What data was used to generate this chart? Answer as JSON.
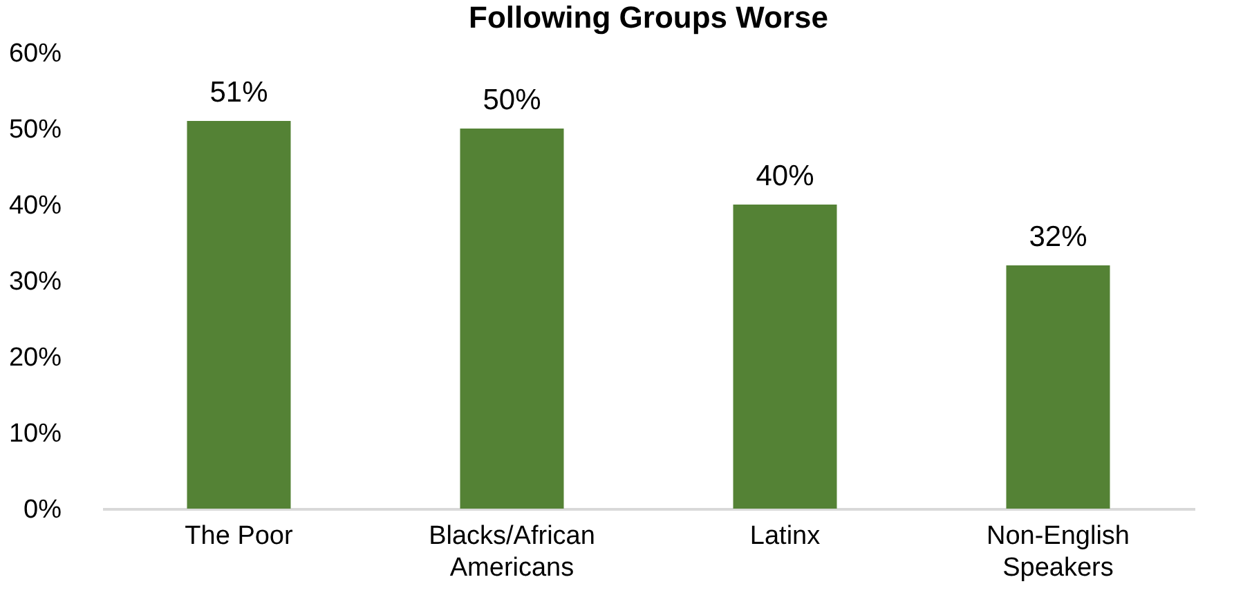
{
  "chart_data": {
    "type": "bar",
    "title": "Following Groups Worse",
    "categories": [
      "The Poor",
      "Blacks/African\nAmericans",
      "Latinx",
      "Non-English\nSpeakers"
    ],
    "values": [
      51,
      50,
      40,
      32
    ],
    "color": "#548235",
    "ylim": [
      0,
      60
    ],
    "yticks": [
      {
        "value": 0,
        "label": "0%"
      },
      {
        "value": 10,
        "label": "10%"
      },
      {
        "value": 20,
        "label": "20%"
      },
      {
        "value": 30,
        "label": "30%"
      },
      {
        "value": 40,
        "label": "40%"
      },
      {
        "value": 50,
        "label": "50%"
      },
      {
        "value": 60,
        "label": "60%"
      }
    ],
    "value_labels": [
      "51%",
      "50%",
      "40%",
      "32%"
    ],
    "grid": false
  }
}
